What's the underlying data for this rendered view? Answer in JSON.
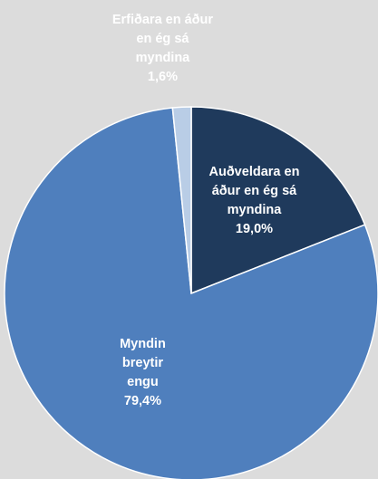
{
  "chart_data": {
    "type": "pie",
    "categories": [
      "Auðveldara en áður en ég sá myndina",
      "Myndin breytir engu",
      "Erfiðara en áður en ég sá myndina"
    ],
    "values": [
      19.0,
      79.4,
      1.6
    ],
    "value_labels": [
      "19,0%",
      "79,4%",
      "1,6%"
    ],
    "colors": [
      "#1f3a5c",
      "#4f7fbd",
      "#b9cde6"
    ]
  }
}
